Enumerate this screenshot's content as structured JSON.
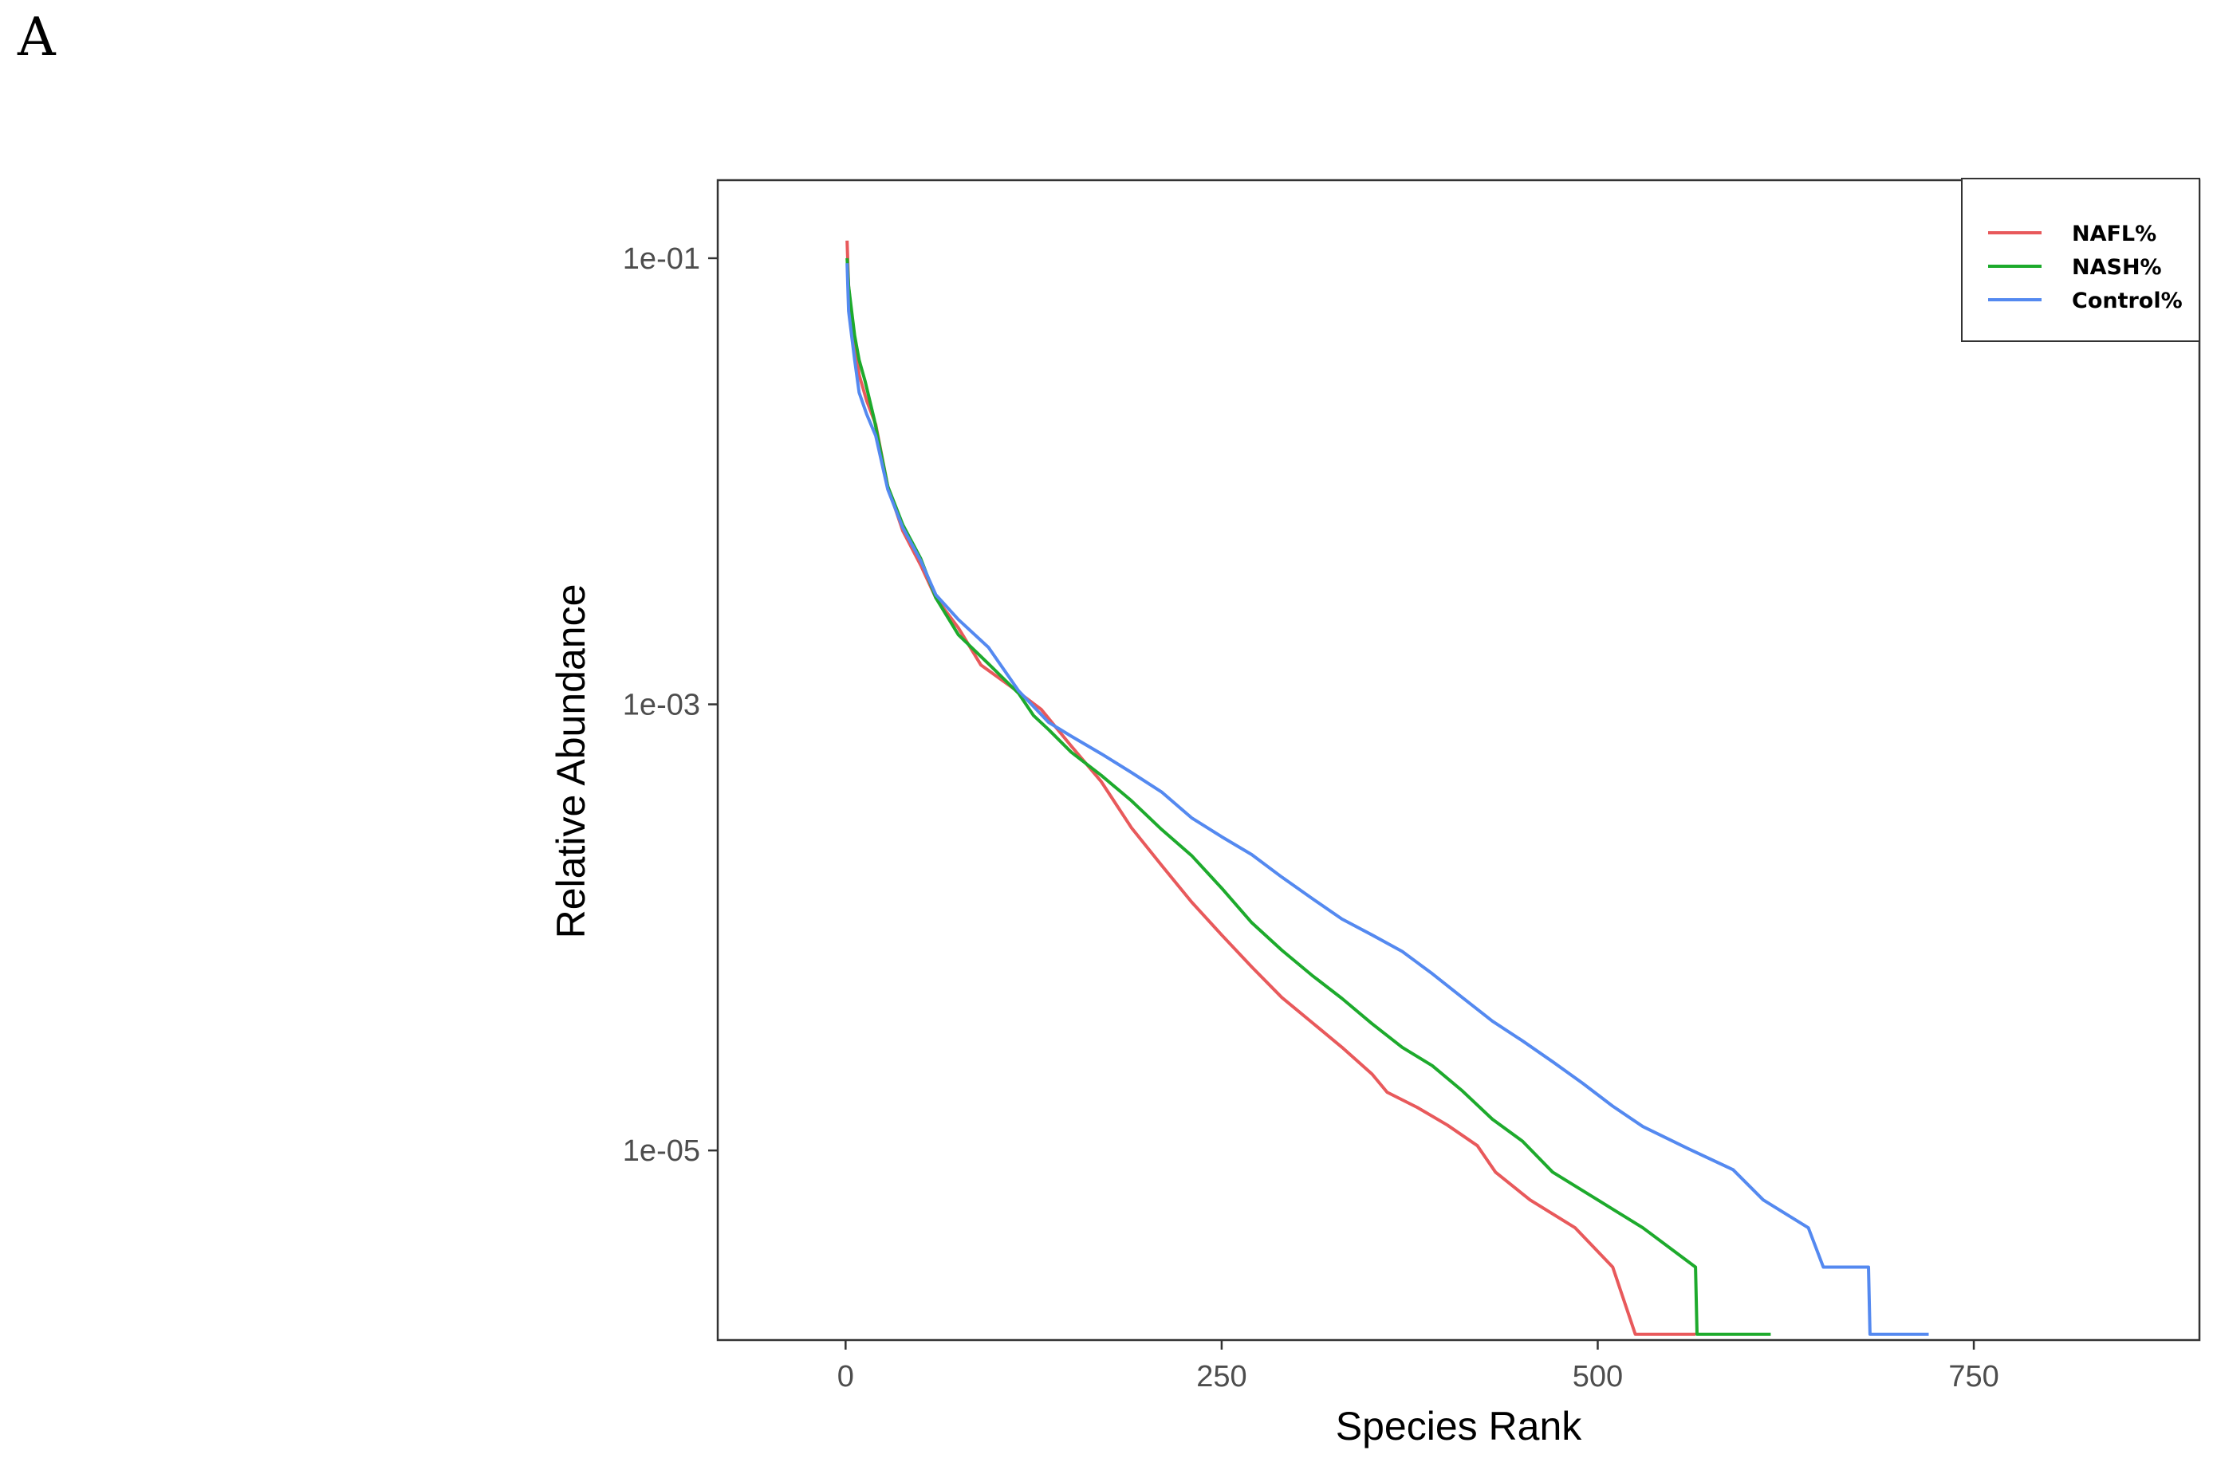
{
  "panel_label": "A",
  "chart_data": {
    "type": "line",
    "title": "",
    "xlabel": "Species Rank",
    "ylabel": "Relative Abundance",
    "y_scale": "log10",
    "xlim": [
      -85,
      900
    ],
    "ylim_log10": [
      -5.85,
      -0.65
    ],
    "x_ticks": [
      {
        "value": 0,
        "label": "0"
      },
      {
        "value": 250,
        "label": "250"
      },
      {
        "value": 500,
        "label": "500"
      },
      {
        "value": 750,
        "label": "750"
      }
    ],
    "y_ticks": [
      {
        "value": 0.1,
        "label": "1e-01"
      },
      {
        "value": 0.001,
        "label": "1e-03"
      },
      {
        "value": 1e-05,
        "label": "1e-05"
      }
    ],
    "legend_position": "top-right",
    "series": [
      {
        "name": "NAFL%",
        "color": "#E8595B",
        "points": [
          [
            1,
            0.12
          ],
          [
            2,
            0.075
          ],
          [
            4,
            0.055
          ],
          [
            6,
            0.042
          ],
          [
            9,
            0.03
          ],
          [
            14,
            0.023
          ],
          [
            20,
            0.018
          ],
          [
            28,
            0.0095
          ],
          [
            38,
            0.006
          ],
          [
            50,
            0.0042
          ],
          [
            60,
            0.003
          ],
          [
            75,
            0.0022
          ],
          [
            90,
            0.0015
          ],
          [
            110,
            0.0012
          ],
          [
            130,
            0.00095
          ],
          [
            150,
            0.00065
          ],
          [
            170,
            0.00045
          ],
          [
            190,
            0.00028
          ],
          [
            210,
            0.00019
          ],
          [
            230,
            0.00013
          ],
          [
            250,
            9.25e-05
          ],
          [
            270,
            6.65e-05
          ],
          [
            290,
            4.85e-05
          ],
          [
            310,
            3.75e-05
          ],
          [
            330,
            2.9e-05
          ],
          [
            350,
            2.2e-05
          ],
          [
            360,
            1.825e-05
          ],
          [
            380,
            1.56e-05
          ],
          [
            400,
            1.3e-05
          ],
          [
            420,
            1.05e-05
          ],
          [
            432,
            8e-06
          ],
          [
            455,
            6e-06
          ],
          [
            485,
            4.5e-06
          ],
          [
            510,
            3e-06
          ],
          [
            525,
            1.5e-06
          ],
          [
            565,
            1.5e-06
          ]
        ]
      },
      {
        "name": "NASH%",
        "color": "#1DAA2C",
        "points": [
          [
            1,
            0.1
          ],
          [
            2,
            0.075
          ],
          [
            4,
            0.058
          ],
          [
            6,
            0.045
          ],
          [
            9,
            0.035
          ],
          [
            13,
            0.028
          ],
          [
            19,
            0.019
          ],
          [
            28,
            0.0095
          ],
          [
            38,
            0.0064
          ],
          [
            50,
            0.0045
          ],
          [
            60,
            0.003
          ],
          [
            75,
            0.00205
          ],
          [
            95,
            0.00152
          ],
          [
            115,
            0.00112
          ],
          [
            125,
            0.00089
          ],
          [
            135,
            0.00077
          ],
          [
            150,
            0.00061
          ],
          [
            170,
            0.00048
          ],
          [
            190,
            0.00037
          ],
          [
            210,
            0.000275
          ],
          [
            230,
            0.00021
          ],
          [
            250,
            0.00015
          ],
          [
            270,
            0.000105
          ],
          [
            290,
            7.9e-05
          ],
          [
            310,
            6.1e-05
          ],
          [
            330,
            4.8e-05
          ],
          [
            350,
            3.7e-05
          ],
          [
            370,
            2.9e-05
          ],
          [
            390,
            2.4e-05
          ],
          [
            410,
            1.85e-05
          ],
          [
            430,
            1.38e-05
          ],
          [
            450,
            1.1e-05
          ],
          [
            470,
            8e-06
          ],
          [
            500,
            6e-06
          ],
          [
            530,
            4.5e-06
          ],
          [
            565,
            3e-06
          ],
          [
            566,
            1.5e-06
          ],
          [
            615,
            1.5e-06
          ]
        ]
      },
      {
        "name": "Control%",
        "color": "#5489F0",
        "points": [
          [
            1,
            0.095
          ],
          [
            2,
            0.058
          ],
          [
            4,
            0.045
          ],
          [
            6,
            0.035
          ],
          [
            9,
            0.025
          ],
          [
            14,
            0.02
          ],
          [
            20,
            0.016
          ],
          [
            28,
            0.0092
          ],
          [
            38,
            0.0062
          ],
          [
            50,
            0.0044
          ],
          [
            60,
            0.0031
          ],
          [
            75,
            0.0024
          ],
          [
            95,
            0.0018
          ],
          [
            115,
            0.00115
          ],
          [
            135,
            0.00083
          ],
          [
            150,
            0.00072
          ],
          [
            170,
            0.0006
          ],
          [
            190,
            0.000495
          ],
          [
            210,
            0.000405
          ],
          [
            230,
            0.00031
          ],
          [
            250,
            0.000255
          ],
          [
            270,
            0.000212
          ],
          [
            290,
            0.000168
          ],
          [
            310,
            0.000135
          ],
          [
            330,
            0.000109
          ],
          [
            350,
            9.25e-05
          ],
          [
            370,
            7.8e-05
          ],
          [
            390,
            6.2e-05
          ],
          [
            410,
            4.85e-05
          ],
          [
            430,
            3.8e-05
          ],
          [
            450,
            3.1e-05
          ],
          [
            470,
            2.5e-05
          ],
          [
            490,
            2e-05
          ],
          [
            510,
            1.58e-05
          ],
          [
            530,
            1.28e-05
          ],
          [
            560,
            1.02e-05
          ],
          [
            590,
            8.2e-06
          ],
          [
            610,
            6e-06
          ],
          [
            640,
            4.5e-06
          ],
          [
            650,
            3e-06
          ],
          [
            680,
            3e-06
          ],
          [
            681,
            1.5e-06
          ],
          [
            720,
            1.5e-06
          ]
        ]
      }
    ]
  }
}
